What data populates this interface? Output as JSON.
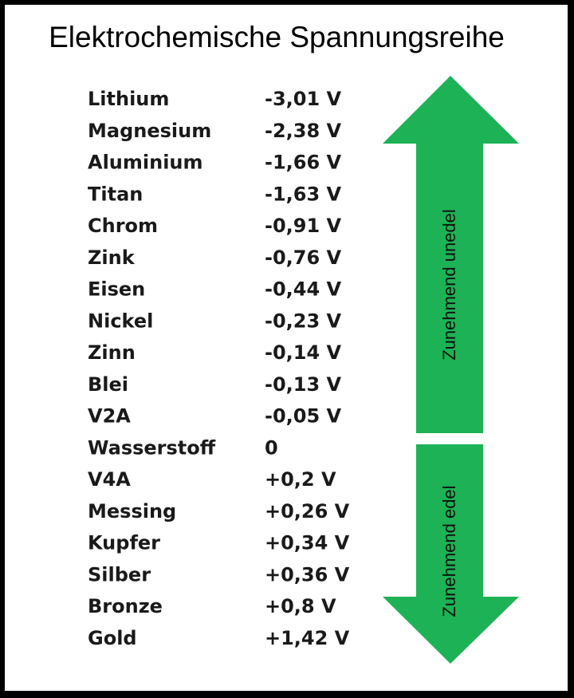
{
  "title": "Elektrochemische Spannungsreihe",
  "table": {
    "rows": [
      [
        "Lithium",
        "-3,01 V"
      ],
      [
        "Magnesium",
        "-2,38 V"
      ],
      [
        "Aluminium",
        "-1,66 V"
      ],
      [
        "Titan",
        "-1,63 V"
      ],
      [
        "Chrom",
        "-0,91 V"
      ],
      [
        "Zink",
        "-0,76 V"
      ],
      [
        "Eisen",
        "-0,44 V"
      ],
      [
        "Nickel",
        "-0,23 V"
      ],
      [
        "Zinn",
        "-0,14 V"
      ],
      [
        "Blei",
        "-0,13 V"
      ],
      [
        "V2A",
        "-0,05 V"
      ],
      [
        "Wasserstoff",
        " 0"
      ],
      [
        "V4A",
        "+0,2 V"
      ],
      [
        "Messing",
        "+0,26 V"
      ],
      [
        "Kupfer",
        "+0,34 V"
      ],
      [
        "Silber",
        "+0,36 V"
      ],
      [
        "Bronze",
        "+0,8 V"
      ],
      [
        "Gold",
        "+1,42 V"
      ]
    ]
  },
  "arrows": {
    "up": "Zunehmend unedel",
    "down": "Zunehmend edel"
  }
}
